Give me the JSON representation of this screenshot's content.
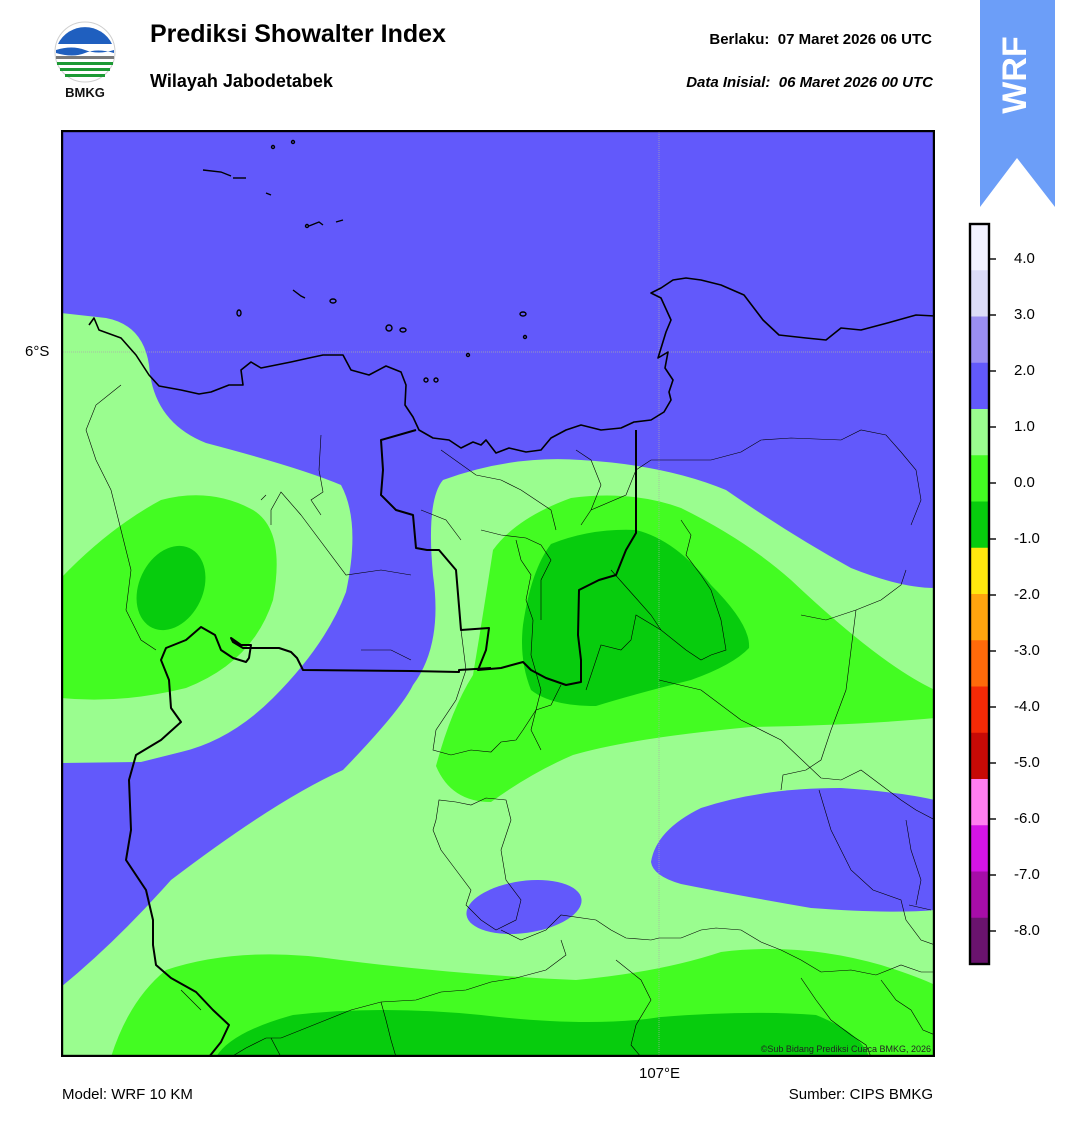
{
  "header": {
    "title": "Prediksi Showalter Index",
    "subtitle": "Wilayah Jabodetabek",
    "valid_label": "Berlaku:",
    "valid_value": "07 Maret 2026 06 UTC",
    "init_label": "Data Inisial:",
    "init_value": "06 Maret 2026 00 UTC"
  },
  "logo": {
    "icon": "bmkg-logo-icon",
    "text": "BMKG"
  },
  "badge": {
    "text": "WRF",
    "color": "#6c9ef8"
  },
  "map": {
    "lat_label": "6°S",
    "lon_label": "107°E",
    "copyright": "©Sub Bidang Prediksi Cuaca BMKG, 2026"
  },
  "footer": {
    "model": "Model: WRF 10 KM",
    "source": "Sumber: CIPS BMKG"
  },
  "colorbar": {
    "ticks": [
      "4.0",
      "3.0",
      "2.0",
      "1.0",
      "0.0",
      "-1.0",
      "-2.0",
      "-3.0",
      "-4.0",
      "-5.0",
      "-6.0",
      "-7.0",
      "-8.0"
    ],
    "colors": [
      "#f2f2ff",
      "#dcdcf8",
      "#9a8ef2",
      "#6259fb",
      "#9afd8f",
      "#43fc22",
      "#07cc0d",
      "#ffe80e",
      "#ffa40e",
      "#ff6a0a",
      "#f42a06",
      "#c70a06",
      "#ff7ef0",
      "#d414e6",
      "#a70da8",
      "#6a136e"
    ]
  },
  "palette": {
    "blue": "#6259fb",
    "light_green": "#9afd8f",
    "green": "#43fc22",
    "dark_green": "#07cc0d"
  }
}
